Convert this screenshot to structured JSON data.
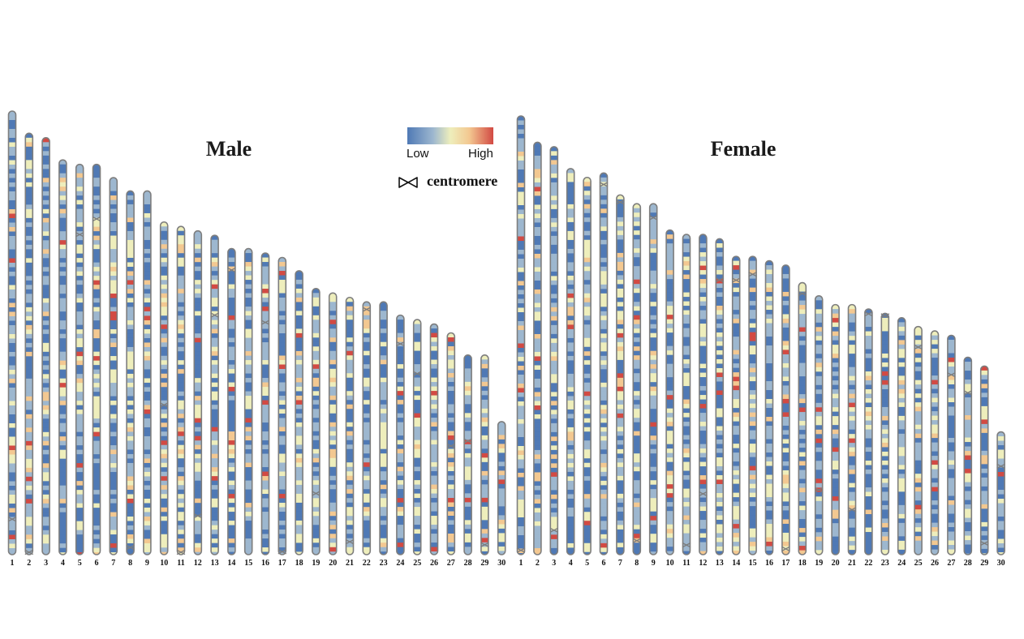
{
  "panels": [
    {
      "title": "Male",
      "chromosomes": [
        {
          "label": "1",
          "length": 1.0,
          "centromere": 0.92
        },
        {
          "label": "2",
          "length": 0.95,
          "centromere": 1.0
        },
        {
          "label": "3",
          "length": 0.94,
          "centromere": null
        },
        {
          "label": "4",
          "length": 0.89,
          "centromere": null
        },
        {
          "label": "5",
          "length": 0.88,
          "centromere": 0.18
        },
        {
          "label": "6",
          "length": 0.88,
          "centromere": 0.14
        },
        {
          "label": "7",
          "length": 0.85,
          "centromere": null
        },
        {
          "label": "8",
          "length": 0.82,
          "centromere": 0.98
        },
        {
          "label": "9",
          "length": 0.82,
          "centromere": null
        },
        {
          "label": "10",
          "length": 0.75,
          "centromere": 0.55
        },
        {
          "label": "11",
          "length": 0.74,
          "centromere": 1.0
        },
        {
          "label": "12",
          "length": 0.73,
          "centromere": 0.88
        },
        {
          "label": "13",
          "length": 0.72,
          "centromere": 0.25
        },
        {
          "label": "14",
          "length": 0.69,
          "centromere": 0.07
        },
        {
          "label": "15",
          "length": 0.69,
          "centromere": null
        },
        {
          "label": "16",
          "length": 0.68,
          "centromere": 0.23
        },
        {
          "label": "17",
          "length": 0.67,
          "centromere": 0.99
        },
        {
          "label": "18",
          "length": 0.64,
          "centromere": null
        },
        {
          "label": "19",
          "length": 0.6,
          "centromere": 0.77
        },
        {
          "label": "20",
          "length": 0.59,
          "centromere": null
        },
        {
          "label": "21",
          "length": 0.58,
          "centromere": 0.95
        },
        {
          "label": "22",
          "length": 0.57,
          "centromere": 0.03
        },
        {
          "label": "23",
          "length": 0.57,
          "centromere": null
        },
        {
          "label": "24",
          "length": 0.54,
          "centromere": 0.12
        },
        {
          "label": "25",
          "length": 0.53,
          "centromere": 0.23
        },
        {
          "label": "26",
          "length": 0.52,
          "centromere": null
        },
        {
          "label": "27",
          "length": 0.5,
          "centromere": 0.51
        },
        {
          "label": "28",
          "length": 0.45,
          "centromere": 0.43
        },
        {
          "label": "29",
          "length": 0.45,
          "centromere": 0.95
        },
        {
          "label": "30",
          "length": 0.3,
          "centromere": null
        }
      ]
    },
    {
      "title": "Female",
      "chromosomes": [
        {
          "label": "1",
          "length": 1.0,
          "centromere": 0.99
        },
        {
          "label": "2",
          "length": 0.94,
          "centromere": null
        },
        {
          "label": "3",
          "length": 0.93,
          "centromere": 0.94
        },
        {
          "label": "4",
          "length": 0.88,
          "centromere": null
        },
        {
          "label": "5",
          "length": 0.86,
          "centromere": null
        },
        {
          "label": "6",
          "length": 0.87,
          "centromere": 0.03
        },
        {
          "label": "7",
          "length": 0.82,
          "centromere": 0.02
        },
        {
          "label": "8",
          "length": 0.8,
          "centromere": 0.96
        },
        {
          "label": "9",
          "length": 0.8,
          "centromere": 0.04
        },
        {
          "label": "10",
          "length": 0.74,
          "centromere": null
        },
        {
          "label": "11",
          "length": 0.73,
          "centromere": 0.97
        },
        {
          "label": "12",
          "length": 0.73,
          "centromere": 0.81
        },
        {
          "label": "13",
          "length": 0.72,
          "centromere": 0.13
        },
        {
          "label": "14",
          "length": 0.68,
          "centromere": 0.08
        },
        {
          "label": "15",
          "length": 0.68,
          "centromere": 0.06
        },
        {
          "label": "16",
          "length": 0.67,
          "centromere": null
        },
        {
          "label": "17",
          "length": 0.66,
          "centromere": 0.98
        },
        {
          "label": "18",
          "length": 0.62,
          "centromere": 0.04
        },
        {
          "label": "19",
          "length": 0.59,
          "centromere": 0.75
        },
        {
          "label": "20",
          "length": 0.57,
          "centromere": null
        },
        {
          "label": "21",
          "length": 0.57,
          "centromere": 0.82
        },
        {
          "label": "22",
          "length": 0.56,
          "centromere": 0.02
        },
        {
          "label": "23",
          "length": 0.55,
          "centromere": 0.01
        },
        {
          "label": "24",
          "length": 0.54,
          "centromere": null
        },
        {
          "label": "25",
          "length": 0.52,
          "centromere": 0.09
        },
        {
          "label": "26",
          "length": 0.51,
          "centromere": null
        },
        {
          "label": "27",
          "length": 0.5,
          "centromere": 0.18
        },
        {
          "label": "28",
          "length": 0.45,
          "centromere": 0.18
        },
        {
          "label": "29",
          "length": 0.43,
          "centromere": 0.94
        },
        {
          "label": "30",
          "length": 0.28,
          "centromere": 0.28
        }
      ]
    }
  ],
  "legend": {
    "low_label": "Low",
    "high_label": "High",
    "scale_colors": [
      "#4f79b5",
      "#9db7cf",
      "#eeeebc",
      "#f3c891",
      "#d24a43"
    ],
    "centromere_label": "centromere"
  }
}
